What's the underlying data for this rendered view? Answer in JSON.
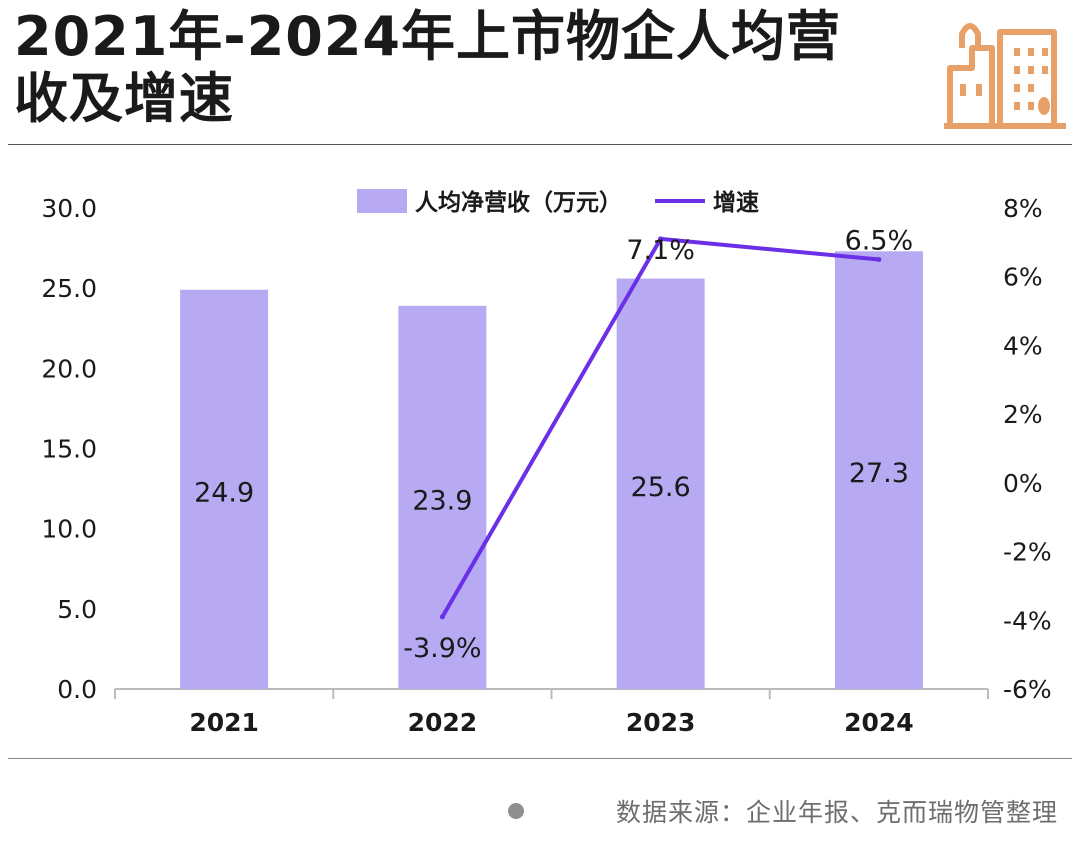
{
  "title": {
    "line1": "2021年-2024年上市物企人均营",
    "line2": "收及增速"
  },
  "footer": {
    "source": "数据来源：企业年报、克而瑞物管整理"
  },
  "logo": {
    "icon": "city-buildings-icon",
    "color": "#E7A067"
  },
  "colors": {
    "bar": "#B7AAF2",
    "line": "#6A2FE6",
    "text": "#1A1A1A",
    "axis": "#BBBBBB"
  },
  "chart_data": {
    "type": "bar",
    "categories": [
      "2021",
      "2022",
      "2023",
      "2024"
    ],
    "series": [
      {
        "name": "人均净营收（万元）",
        "type": "bar",
        "axis": "left",
        "values": [
          24.9,
          23.9,
          25.6,
          27.3
        ],
        "labels": [
          "24.9",
          "23.9",
          "25.6",
          "27.3"
        ]
      },
      {
        "name": "增速",
        "type": "line",
        "axis": "right",
        "x": [
          "2022",
          "2023",
          "2024"
        ],
        "values": [
          -3.9,
          7.1,
          6.5
        ],
        "labels": [
          "-3.9%",
          "7.1%",
          "6.5%"
        ]
      }
    ],
    "y_left": {
      "range": [
        0,
        30
      ],
      "ticks": [
        0,
        5,
        10,
        15,
        20,
        25,
        30
      ],
      "tick_labels": [
        "0.0",
        "5.0",
        "10.0",
        "15.0",
        "20.0",
        "25.0",
        "30.0"
      ]
    },
    "y_right": {
      "range": [
        -6,
        8
      ],
      "ticks": [
        -6,
        -4,
        -2,
        0,
        2,
        4,
        6,
        8
      ],
      "tick_labels": [
        "-6%",
        "-4%",
        "-2%",
        "0%",
        "2%",
        "4%",
        "6%",
        "8%"
      ]
    },
    "legend": {
      "position": "top-center",
      "items": [
        "人均净营收（万元）",
        "增速"
      ]
    },
    "grid": false
  }
}
